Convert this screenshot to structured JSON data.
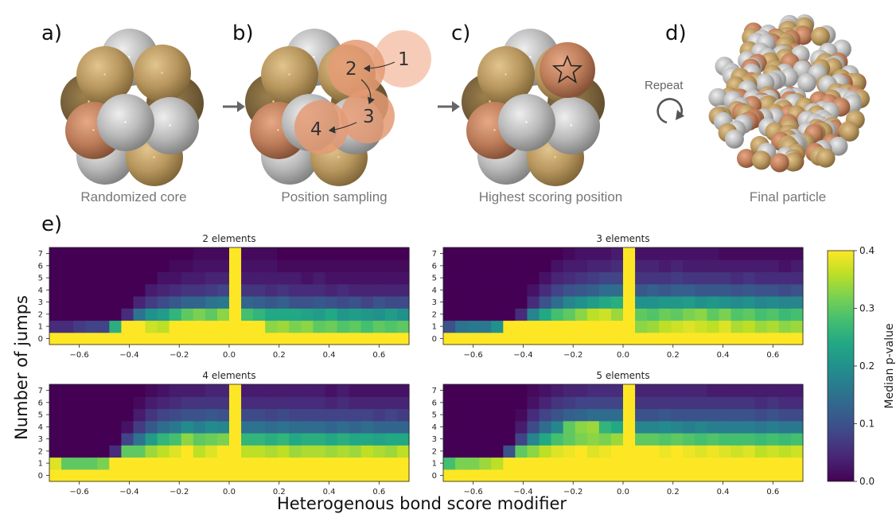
{
  "schematic": {
    "panels": [
      {
        "letter": "a)",
        "caption": "Randomized core"
      },
      {
        "letter": "b)",
        "caption": "Position sampling"
      },
      {
        "letter": "c)",
        "caption": "Highest scoring position"
      },
      {
        "letter": "d)",
        "caption": "Final particle"
      }
    ],
    "steps": [
      "1",
      "2",
      "3",
      "4"
    ],
    "repeat_label": "Repeat",
    "icons": [
      "right-arrow-icon",
      "star-icon",
      "repeat-cycle-icon"
    ],
    "colors": {
      "gray": "#b4b4b4",
      "gold": "#b8975e",
      "copper": "#bd7d5a",
      "highlight": "#e9a27f"
    }
  },
  "heatmap_panel_letter": "e)",
  "ylabel": "Number of jumps",
  "xlabel": "Heterogenous bond score modifier",
  "colorbar": {
    "label": "Median p-value",
    "min": 0.0,
    "max": 0.4,
    "ticks": [
      "0.0",
      "0.1",
      "0.2",
      "0.3",
      "0.4"
    ],
    "colormap": "viridis"
  },
  "chart_data": [
    {
      "type": "heatmap",
      "title": "2 elements",
      "x_range": [
        -0.72,
        0.72
      ],
      "x_ticks": [
        "−0.6",
        "−0.4",
        "−0.2",
        "0.0",
        "0.2",
        "0.4",
        "0.6"
      ],
      "y_ticks": [
        "0",
        "1",
        "2",
        "3",
        "4",
        "5",
        "6",
        "7"
      ],
      "rows": [
        [
          0.4,
          0.4,
          0.4,
          0.4,
          0.4,
          0.4,
          0.4,
          0.4,
          0.4,
          0.4,
          0.4,
          0.4,
          0.4,
          0.4,
          0.4,
          0.4,
          0.4,
          0.4,
          0.4,
          0.4,
          0.4,
          0.4,
          0.4,
          0.4,
          0.4,
          0.4,
          0.4,
          0.4,
          0.4,
          0.4
        ],
        [
          0.05,
          0.05,
          0.07,
          0.08,
          0.08,
          0.25,
          0.4,
          0.4,
          0.37,
          0.36,
          0.4,
          0.4,
          0.4,
          0.4,
          0.4,
          0.4,
          0.4,
          0.4,
          0.33,
          0.34,
          0.32,
          0.33,
          0.3,
          0.31,
          0.29,
          0.3,
          0.28,
          0.3,
          0.29,
          0.3
        ],
        [
          0.0,
          0.0,
          0.0,
          0.0,
          0.0,
          0.0,
          0.05,
          0.15,
          0.2,
          0.22,
          0.26,
          0.3,
          0.32,
          0.3,
          0.33,
          0.4,
          0.28,
          0.26,
          0.24,
          0.24,
          0.24,
          0.23,
          0.22,
          0.24,
          0.21,
          0.22,
          0.21,
          0.2,
          0.22,
          0.2
        ],
        [
          0.0,
          0.0,
          0.0,
          0.0,
          0.0,
          0.0,
          0.0,
          0.04,
          0.07,
          0.09,
          0.11,
          0.13,
          0.13,
          0.15,
          0.16,
          0.4,
          0.13,
          0.12,
          0.11,
          0.12,
          0.1,
          0.1,
          0.11,
          0.1,
          0.09,
          0.1,
          0.08,
          0.1,
          0.09,
          0.09
        ],
        [
          0.0,
          0.0,
          0.0,
          0.0,
          0.0,
          0.0,
          0.0,
          0.0,
          0.03,
          0.04,
          0.05,
          0.06,
          0.06,
          0.07,
          0.08,
          0.4,
          0.06,
          0.06,
          0.05,
          0.06,
          0.05,
          0.05,
          0.05,
          0.04,
          0.05,
          0.04,
          0.04,
          0.04,
          0.04,
          0.04
        ],
        [
          0.0,
          0.0,
          0.0,
          0.0,
          0.0,
          0.0,
          0.0,
          0.0,
          0.0,
          0.02,
          0.02,
          0.03,
          0.03,
          0.04,
          0.04,
          0.4,
          0.03,
          0.03,
          0.03,
          0.03,
          0.03,
          0.02,
          0.03,
          0.02,
          0.02,
          0.02,
          0.02,
          0.02,
          0.02,
          0.02
        ],
        [
          0.0,
          0.0,
          0.0,
          0.0,
          0.0,
          0.0,
          0.0,
          0.0,
          0.0,
          0.0,
          0.01,
          0.01,
          0.02,
          0.02,
          0.02,
          0.4,
          0.02,
          0.02,
          0.02,
          0.01,
          0.01,
          0.01,
          0.01,
          0.01,
          0.01,
          0.01,
          0.01,
          0.01,
          0.01,
          0.01
        ],
        [
          0.0,
          0.0,
          0.0,
          0.0,
          0.0,
          0.0,
          0.0,
          0.0,
          0.0,
          0.0,
          0.0,
          0.0,
          0.01,
          0.01,
          0.01,
          0.4,
          0.01,
          0.01,
          0.01,
          0.0,
          0.0,
          0.0,
          0.0,
          0.0,
          0.0,
          0.0,
          0.0,
          0.0,
          0.0,
          0.0
        ]
      ]
    },
    {
      "type": "heatmap",
      "title": "3 elements",
      "x_range": [
        -0.72,
        0.72
      ],
      "x_ticks": [
        "−0.6",
        "−0.4",
        "−0.2",
        "0.0",
        "0.2",
        "0.4",
        "0.6"
      ],
      "y_ticks": [
        "0",
        "1",
        "2",
        "3",
        "4",
        "5",
        "6",
        "7"
      ],
      "rows": [
        [
          0.4,
          0.4,
          0.4,
          0.4,
          0.4,
          0.4,
          0.4,
          0.4,
          0.4,
          0.4,
          0.4,
          0.4,
          0.4,
          0.4,
          0.4,
          0.4,
          0.4,
          0.4,
          0.4,
          0.4,
          0.4,
          0.4,
          0.4,
          0.4,
          0.4,
          0.4,
          0.4,
          0.4,
          0.4,
          0.4
        ],
        [
          0.1,
          0.15,
          0.16,
          0.16,
          0.2,
          0.4,
          0.4,
          0.4,
          0.4,
          0.4,
          0.4,
          0.4,
          0.4,
          0.4,
          0.4,
          0.4,
          0.33,
          0.34,
          0.36,
          0.37,
          0.38,
          0.37,
          0.36,
          0.38,
          0.35,
          0.36,
          0.34,
          0.35,
          0.33,
          0.34
        ],
        [
          0.0,
          0.0,
          0.0,
          0.0,
          0.0,
          0.0,
          0.05,
          0.18,
          0.24,
          0.28,
          0.3,
          0.33,
          0.36,
          0.37,
          0.34,
          0.4,
          0.3,
          0.29,
          0.31,
          0.3,
          0.32,
          0.33,
          0.3,
          0.32,
          0.29,
          0.3,
          0.28,
          0.29,
          0.27,
          0.28
        ],
        [
          0.0,
          0.0,
          0.0,
          0.0,
          0.0,
          0.0,
          0.0,
          0.05,
          0.1,
          0.14,
          0.18,
          0.2,
          0.22,
          0.24,
          0.25,
          0.4,
          0.2,
          0.2,
          0.21,
          0.21,
          0.22,
          0.2,
          0.21,
          0.2,
          0.19,
          0.2,
          0.18,
          0.19,
          0.18,
          0.18
        ],
        [
          0.0,
          0.0,
          0.0,
          0.0,
          0.0,
          0.0,
          0.0,
          0.02,
          0.05,
          0.08,
          0.1,
          0.11,
          0.12,
          0.14,
          0.14,
          0.4,
          0.11,
          0.12,
          0.11,
          0.12,
          0.12,
          0.11,
          0.11,
          0.11,
          0.1,
          0.11,
          0.1,
          0.1,
          0.09,
          0.1
        ],
        [
          0.0,
          0.0,
          0.0,
          0.0,
          0.0,
          0.0,
          0.0,
          0.0,
          0.02,
          0.04,
          0.05,
          0.06,
          0.07,
          0.08,
          0.08,
          0.4,
          0.06,
          0.06,
          0.06,
          0.07,
          0.06,
          0.06,
          0.06,
          0.06,
          0.05,
          0.06,
          0.05,
          0.05,
          0.05,
          0.05
        ],
        [
          0.0,
          0.0,
          0.0,
          0.0,
          0.0,
          0.0,
          0.0,
          0.0,
          0.0,
          0.02,
          0.03,
          0.03,
          0.04,
          0.04,
          0.05,
          0.4,
          0.04,
          0.04,
          0.03,
          0.04,
          0.03,
          0.03,
          0.03,
          0.03,
          0.03,
          0.03,
          0.03,
          0.03,
          0.02,
          0.03
        ],
        [
          0.0,
          0.0,
          0.0,
          0.0,
          0.0,
          0.0,
          0.0,
          0.0,
          0.0,
          0.0,
          0.01,
          0.02,
          0.02,
          0.02,
          0.03,
          0.4,
          0.02,
          0.02,
          0.02,
          0.02,
          0.02,
          0.02,
          0.02,
          0.01,
          0.01,
          0.01,
          0.01,
          0.01,
          0.01,
          0.01
        ]
      ]
    },
    {
      "type": "heatmap",
      "title": "4 elements",
      "x_range": [
        -0.72,
        0.72
      ],
      "x_ticks": [
        "−0.6",
        "−0.4",
        "−0.2",
        "0.0",
        "0.2",
        "0.4",
        "0.6"
      ],
      "y_ticks": [
        "0",
        "1",
        "2",
        "3",
        "4",
        "5",
        "6",
        "7"
      ],
      "rows": [
        [
          0.4,
          0.4,
          0.4,
          0.4,
          0.4,
          0.4,
          0.4,
          0.4,
          0.4,
          0.4,
          0.4,
          0.4,
          0.4,
          0.4,
          0.4,
          0.4,
          0.4,
          0.4,
          0.4,
          0.4,
          0.4,
          0.4,
          0.4,
          0.4,
          0.4,
          0.4,
          0.4,
          0.4,
          0.4,
          0.4
        ],
        [
          0.38,
          0.3,
          0.3,
          0.3,
          0.32,
          0.4,
          0.4,
          0.4,
          0.4,
          0.4,
          0.4,
          0.4,
          0.4,
          0.4,
          0.4,
          0.4,
          0.4,
          0.4,
          0.4,
          0.4,
          0.4,
          0.4,
          0.4,
          0.4,
          0.4,
          0.4,
          0.4,
          0.4,
          0.4,
          0.4
        ],
        [
          0.0,
          0.0,
          0.0,
          0.0,
          0.0,
          0.05,
          0.3,
          0.3,
          0.34,
          0.36,
          0.38,
          0.4,
          0.36,
          0.38,
          0.4,
          0.4,
          0.36,
          0.36,
          0.35,
          0.36,
          0.34,
          0.35,
          0.35,
          0.34,
          0.35,
          0.34,
          0.36,
          0.35,
          0.34,
          0.36
        ],
        [
          0.0,
          0.0,
          0.0,
          0.0,
          0.0,
          0.0,
          0.08,
          0.15,
          0.22,
          0.26,
          0.28,
          0.33,
          0.3,
          0.31,
          0.32,
          0.4,
          0.26,
          0.26,
          0.25,
          0.26,
          0.24,
          0.25,
          0.25,
          0.24,
          0.25,
          0.24,
          0.24,
          0.23,
          0.24,
          0.24
        ],
        [
          0.0,
          0.0,
          0.0,
          0.0,
          0.0,
          0.0,
          0.02,
          0.07,
          0.11,
          0.14,
          0.16,
          0.19,
          0.17,
          0.19,
          0.18,
          0.4,
          0.15,
          0.15,
          0.14,
          0.15,
          0.14,
          0.14,
          0.14,
          0.13,
          0.14,
          0.13,
          0.14,
          0.13,
          0.13,
          0.13
        ],
        [
          0.0,
          0.0,
          0.0,
          0.0,
          0.0,
          0.0,
          0.0,
          0.03,
          0.06,
          0.08,
          0.09,
          0.1,
          0.1,
          0.11,
          0.1,
          0.4,
          0.09,
          0.09,
          0.08,
          0.09,
          0.08,
          0.08,
          0.08,
          0.08,
          0.08,
          0.08,
          0.08,
          0.07,
          0.08,
          0.07
        ],
        [
          0.0,
          0.0,
          0.0,
          0.0,
          0.0,
          0.0,
          0.0,
          0.01,
          0.03,
          0.04,
          0.05,
          0.06,
          0.06,
          0.06,
          0.06,
          0.4,
          0.05,
          0.05,
          0.05,
          0.05,
          0.05,
          0.05,
          0.05,
          0.04,
          0.05,
          0.04,
          0.04,
          0.04,
          0.04,
          0.04
        ],
        [
          0.0,
          0.0,
          0.0,
          0.0,
          0.0,
          0.0,
          0.0,
          0.0,
          0.01,
          0.02,
          0.03,
          0.03,
          0.03,
          0.04,
          0.04,
          0.4,
          0.03,
          0.03,
          0.03,
          0.03,
          0.03,
          0.03,
          0.03,
          0.02,
          0.03,
          0.02,
          0.02,
          0.02,
          0.02,
          0.02
        ]
      ]
    },
    {
      "type": "heatmap",
      "title": "5 elements",
      "x_range": [
        -0.72,
        0.72
      ],
      "x_ticks": [
        "−0.6",
        "−0.4",
        "−0.2",
        "0.0",
        "0.2",
        "0.4",
        "0.6"
      ],
      "y_ticks": [
        "0",
        "1",
        "2",
        "3",
        "4",
        "5",
        "6",
        "7"
      ],
      "rows": [
        [
          0.4,
          0.4,
          0.4,
          0.4,
          0.4,
          0.4,
          0.4,
          0.4,
          0.4,
          0.4,
          0.4,
          0.4,
          0.4,
          0.4,
          0.4,
          0.4,
          0.4,
          0.4,
          0.4,
          0.4,
          0.4,
          0.4,
          0.4,
          0.4,
          0.4,
          0.4,
          0.4,
          0.4,
          0.4,
          0.4
        ],
        [
          0.28,
          0.32,
          0.32,
          0.34,
          0.36,
          0.4,
          0.4,
          0.4,
          0.4,
          0.4,
          0.4,
          0.4,
          0.4,
          0.4,
          0.4,
          0.4,
          0.4,
          0.4,
          0.4,
          0.4,
          0.4,
          0.4,
          0.4,
          0.4,
          0.4,
          0.4,
          0.4,
          0.4,
          0.4,
          0.4
        ],
        [
          0.0,
          0.0,
          0.0,
          0.0,
          0.0,
          0.1,
          0.3,
          0.33,
          0.36,
          0.38,
          0.39,
          0.4,
          0.38,
          0.39,
          0.4,
          0.4,
          0.4,
          0.4,
          0.39,
          0.4,
          0.39,
          0.38,
          0.39,
          0.38,
          0.37,
          0.38,
          0.36,
          0.37,
          0.36,
          0.37
        ],
        [
          0.0,
          0.0,
          0.0,
          0.0,
          0.0,
          0.0,
          0.08,
          0.18,
          0.24,
          0.28,
          0.3,
          0.32,
          0.33,
          0.32,
          0.34,
          0.4,
          0.3,
          0.3,
          0.29,
          0.3,
          0.29,
          0.28,
          0.29,
          0.28,
          0.28,
          0.28,
          0.27,
          0.28,
          0.27,
          0.28
        ],
        [
          0.0,
          0.0,
          0.0,
          0.0,
          0.0,
          0.0,
          0.03,
          0.09,
          0.14,
          0.18,
          0.3,
          0.33,
          0.34,
          0.26,
          0.24,
          0.4,
          0.18,
          0.18,
          0.19,
          0.18,
          0.17,
          0.18,
          0.17,
          0.17,
          0.17,
          0.17,
          0.16,
          0.17,
          0.16,
          0.16
        ],
        [
          0.0,
          0.0,
          0.0,
          0.0,
          0.0,
          0.0,
          0.01,
          0.05,
          0.08,
          0.1,
          0.12,
          0.13,
          0.14,
          0.14,
          0.14,
          0.4,
          0.1,
          0.1,
          0.11,
          0.1,
          0.1,
          0.1,
          0.1,
          0.1,
          0.1,
          0.1,
          0.09,
          0.1,
          0.09,
          0.09
        ],
        [
          0.0,
          0.0,
          0.0,
          0.0,
          0.0,
          0.0,
          0.0,
          0.02,
          0.04,
          0.06,
          0.07,
          0.08,
          0.08,
          0.08,
          0.08,
          0.4,
          0.06,
          0.06,
          0.06,
          0.06,
          0.06,
          0.06,
          0.06,
          0.06,
          0.06,
          0.06,
          0.05,
          0.06,
          0.05,
          0.05
        ],
        [
          0.0,
          0.0,
          0.0,
          0.0,
          0.0,
          0.0,
          0.0,
          0.01,
          0.02,
          0.03,
          0.04,
          0.04,
          0.05,
          0.05,
          0.05,
          0.4,
          0.04,
          0.04,
          0.04,
          0.04,
          0.04,
          0.04,
          0.03,
          0.03,
          0.03,
          0.03,
          0.03,
          0.03,
          0.03,
          0.03
        ]
      ]
    }
  ]
}
